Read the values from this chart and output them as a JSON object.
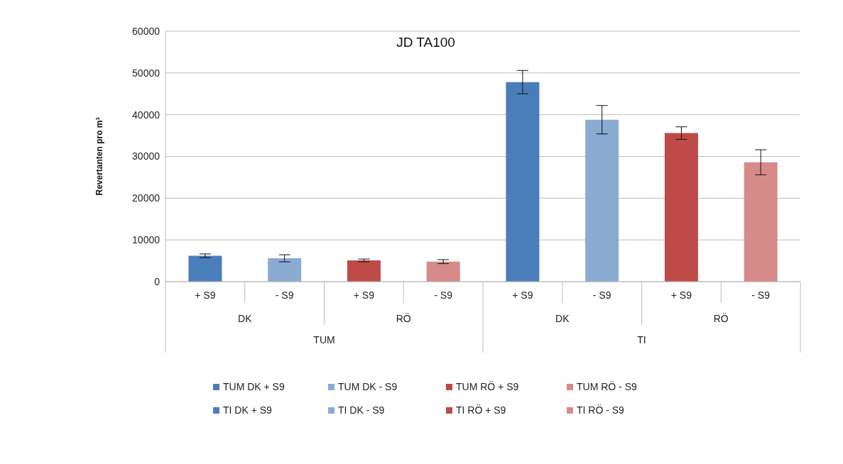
{
  "chart_data": {
    "type": "bar",
    "title": "JD TA100",
    "ylabel": "Revertanten pro m³",
    "categories": [
      "+ S9",
      "- S9",
      "+ S9",
      "- S9",
      "+ S9",
      "- S9",
      "+ S9",
      "- S9"
    ],
    "annotations": [
      "DK",
      "RÖ",
      "DK",
      "RÖ",
      "TUM",
      "TI"
    ],
    "series": [
      {
        "name": "TUM DK + S9",
        "color": "#4a7ebb",
        "values": [
          6200,
          null,
          null,
          null,
          null,
          null,
          null,
          null
        ],
        "errors": [
          450,
          null,
          null,
          null,
          null,
          null,
          null,
          null
        ]
      },
      {
        "name": "TUM DK - S9",
        "color": "#8aabd2",
        "values": [
          null,
          5600,
          null,
          null,
          null,
          null,
          null,
          null
        ],
        "errors": [
          null,
          850,
          null,
          null,
          null,
          null,
          null,
          null
        ]
      },
      {
        "name": "TUM RÖ + S9",
        "color": "#be4b48",
        "values": [
          null,
          null,
          5100,
          null,
          null,
          null,
          null,
          null
        ],
        "errors": [
          null,
          null,
          320,
          null,
          null,
          null,
          null,
          null
        ]
      },
      {
        "name": "TUM RÖ - S9",
        "color": "#d68a89",
        "values": [
          null,
          null,
          null,
          4800,
          null,
          null,
          null,
          null
        ],
        "errors": [
          null,
          null,
          null,
          480,
          null,
          null,
          null,
          null
        ]
      },
      {
        "name": "TI DK + S9",
        "color": "#4a7ebb",
        "values": [
          null,
          null,
          null,
          null,
          47800,
          null,
          null,
          null
        ],
        "errors": [
          null,
          null,
          null,
          null,
          2800,
          null,
          null,
          null
        ]
      },
      {
        "name": "TI DK - S9",
        "color": "#8aabd2",
        "values": [
          null,
          null,
          null,
          null,
          null,
          38800,
          null,
          null
        ],
        "errors": [
          null,
          null,
          null,
          null,
          null,
          3400,
          null,
          null
        ]
      },
      {
        "name": "TI RÖ + S9",
        "color": "#be4b48",
        "values": [
          null,
          null,
          null,
          null,
          null,
          null,
          35600,
          null
        ],
        "errors": [
          null,
          null,
          null,
          null,
          null,
          null,
          1500,
          null
        ]
      },
      {
        "name": "TI RÖ - S9",
        "color": "#d68a89",
        "values": [
          null,
          null,
          null,
          null,
          null,
          null,
          null,
          28600
        ],
        "errors": [
          null,
          null,
          null,
          null,
          null,
          null,
          null,
          3000
        ]
      }
    ],
    "ylim": [
      0,
      60000
    ],
    "yticks": [
      0,
      10000,
      20000,
      30000,
      40000,
      50000,
      60000
    ],
    "grid": "y",
    "legend": "bottom"
  }
}
